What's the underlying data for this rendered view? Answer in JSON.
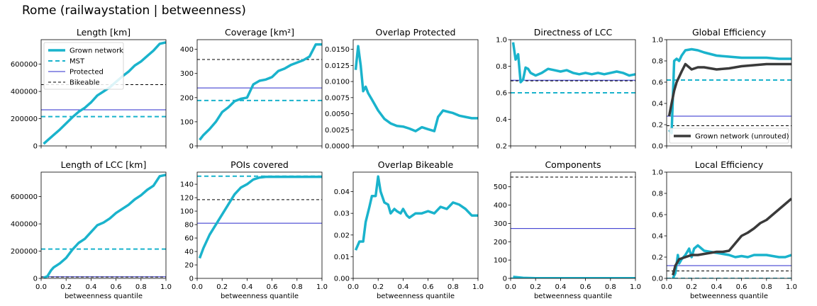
{
  "figure": {
    "title": "Rome (railwaystation | betweenness)"
  },
  "colors": {
    "grown": "#1ab3cc",
    "mst": "#1ab3cc",
    "protected": "#2b2bcc",
    "bikeable": "#000000",
    "unrouted": "#3a3a3a"
  },
  "chart_data": [
    {
      "id": "length",
      "type": "line",
      "title": "Length [km]",
      "xlabel": "",
      "ylim": [
        0,
        780000
      ],
      "xlim": [
        0,
        1
      ],
      "xticks": [
        0,
        0.2,
        0.4,
        0.6,
        0.8,
        1.0
      ],
      "xticklabels": [],
      "yticks": [
        0,
        200000,
        400000,
        600000
      ],
      "yticklabels": [
        "0",
        "200000",
        "400000",
        "600000"
      ],
      "legend": {
        "placement": "top-left",
        "entries": [
          {
            "label": "Grown network",
            "style": "grown"
          },
          {
            "label": "MST",
            "style": "mst"
          },
          {
            "label": "Protected",
            "style": "protected"
          },
          {
            "label": "Bikeable",
            "style": "bikeable"
          }
        ]
      },
      "hlines": [
        {
          "series": "MST",
          "y": 215000
        },
        {
          "series": "Protected",
          "y": 265000
        },
        {
          "series": "Bikeable",
          "y": 450000
        }
      ],
      "series": [
        {
          "name": "Grown network",
          "x": [
            0.02,
            0.05,
            0.1,
            0.15,
            0.2,
            0.25,
            0.3,
            0.35,
            0.4,
            0.45,
            0.5,
            0.55,
            0.6,
            0.65,
            0.7,
            0.75,
            0.8,
            0.85,
            0.9,
            0.95,
            1.0
          ],
          "y": [
            15000,
            40000,
            80000,
            120000,
            165000,
            210000,
            250000,
            280000,
            320000,
            370000,
            400000,
            430000,
            470000,
            510000,
            545000,
            590000,
            620000,
            660000,
            700000,
            750000,
            760000
          ]
        }
      ]
    },
    {
      "id": "coverage",
      "type": "line",
      "title": "Coverage [km²]",
      "xlabel": "",
      "ylim": [
        0,
        440
      ],
      "xlim": [
        0,
        1
      ],
      "xticks": [
        0,
        0.2,
        0.4,
        0.6,
        0.8,
        1.0
      ],
      "xticklabels": [],
      "yticks": [
        0,
        100,
        200,
        300,
        400
      ],
      "yticklabels": [
        "0",
        "100",
        "200",
        "300",
        "400"
      ],
      "hlines": [
        {
          "series": "MST",
          "y": 188
        },
        {
          "series": "Protected",
          "y": 240
        },
        {
          "series": "Bikeable",
          "y": 358
        }
      ],
      "series": [
        {
          "name": "Grown network",
          "x": [
            0.02,
            0.05,
            0.1,
            0.15,
            0.2,
            0.25,
            0.3,
            0.35,
            0.4,
            0.45,
            0.5,
            0.55,
            0.6,
            0.65,
            0.7,
            0.75,
            0.8,
            0.85,
            0.9,
            0.95,
            1.0
          ],
          "y": [
            25,
            45,
            70,
            100,
            140,
            160,
            185,
            195,
            200,
            255,
            270,
            275,
            285,
            310,
            320,
            335,
            345,
            355,
            370,
            420,
            420
          ]
        }
      ]
    },
    {
      "id": "overlap_protected",
      "type": "line",
      "title": "Overlap Protected",
      "xlabel": "",
      "ylim": [
        0,
        0.0165
      ],
      "xlim": [
        0,
        1
      ],
      "xticks": [
        0,
        0.2,
        0.4,
        0.6,
        0.8,
        1.0
      ],
      "xticklabels": [],
      "yticks": [
        0,
        0.0025,
        0.005,
        0.0075,
        0.01,
        0.0125,
        0.015
      ],
      "yticklabels": [
        "0.0000",
        "0.0025",
        "0.0050",
        "0.0075",
        "0.0100",
        "0.0125",
        "0.0150"
      ],
      "hlines": [],
      "series": [
        {
          "name": "Grown network",
          "x": [
            0.02,
            0.04,
            0.06,
            0.08,
            0.1,
            0.12,
            0.15,
            0.2,
            0.25,
            0.3,
            0.35,
            0.4,
            0.45,
            0.5,
            0.55,
            0.6,
            0.65,
            0.68,
            0.72,
            0.8,
            0.85,
            0.9,
            0.95,
            1.0
          ],
          "y": [
            0.0118,
            0.0155,
            0.0125,
            0.0085,
            0.0092,
            0.0082,
            0.0072,
            0.0055,
            0.0042,
            0.0035,
            0.0031,
            0.003,
            0.0027,
            0.0023,
            0.0029,
            0.0026,
            0.0023,
            0.0045,
            0.0055,
            0.0051,
            0.0047,
            0.0045,
            0.0043,
            0.0043
          ]
        }
      ]
    },
    {
      "id": "directness",
      "type": "line",
      "title": "Directness of LCC",
      "xlabel": "",
      "ylim": [
        0.2,
        1.0
      ],
      "xlim": [
        0,
        1
      ],
      "xticks": [
        0,
        0.2,
        0.4,
        0.6,
        0.8,
        1.0
      ],
      "xticklabels": [],
      "yticks": [
        0.2,
        0.4,
        0.6,
        0.8,
        1.0
      ],
      "yticklabels": [
        "0.2",
        "0.4",
        "0.6",
        "0.8",
        "1.0"
      ],
      "hlines": [
        {
          "series": "MST",
          "y": 0.6
        },
        {
          "series": "Protected",
          "y": 0.695
        },
        {
          "series": "Bikeable",
          "y": 0.69
        }
      ],
      "series": [
        {
          "name": "Grown network",
          "x": [
            0.02,
            0.04,
            0.06,
            0.08,
            0.1,
            0.12,
            0.14,
            0.16,
            0.2,
            0.25,
            0.3,
            0.35,
            0.4,
            0.45,
            0.5,
            0.55,
            0.6,
            0.65,
            0.7,
            0.75,
            0.8,
            0.85,
            0.9,
            0.95,
            1.0
          ],
          "y": [
            0.98,
            0.85,
            0.89,
            0.68,
            0.7,
            0.79,
            0.78,
            0.75,
            0.73,
            0.75,
            0.78,
            0.77,
            0.76,
            0.77,
            0.75,
            0.74,
            0.75,
            0.74,
            0.75,
            0.74,
            0.75,
            0.76,
            0.75,
            0.73,
            0.74
          ]
        }
      ]
    },
    {
      "id": "global_eff",
      "type": "line",
      "title": "Global Efficiency",
      "xlabel": "",
      "ylim": [
        0,
        1.0
      ],
      "xlim": [
        0,
        1
      ],
      "xticks": [
        0,
        0.2,
        0.4,
        0.6,
        0.8,
        1.0
      ],
      "xticklabels": [],
      "yticks": [
        0,
        0.2,
        0.4,
        0.6,
        0.8,
        1.0
      ],
      "yticklabels": [
        "0.0",
        "0.2",
        "0.4",
        "0.6",
        "0.8",
        "1.0"
      ],
      "legend": {
        "placement": "bottom-right",
        "entries": [
          {
            "label": "Grown network (unrouted)",
            "style": "unrouted"
          }
        ]
      },
      "hlines": [
        {
          "series": "MST",
          "y": 0.62
        },
        {
          "series": "Protected",
          "y": 0.28
        },
        {
          "series": "Bikeable",
          "y": 0.19
        }
      ],
      "series": [
        {
          "name": "Grown network",
          "x": [
            0.02,
            0.04,
            0.06,
            0.08,
            0.1,
            0.12,
            0.15,
            0.2,
            0.25,
            0.3,
            0.4,
            0.5,
            0.6,
            0.7,
            0.8,
            0.9,
            1.0
          ],
          "y": [
            0.15,
            0.12,
            0.8,
            0.82,
            0.8,
            0.85,
            0.9,
            0.91,
            0.9,
            0.88,
            0.85,
            0.84,
            0.83,
            0.83,
            0.83,
            0.82,
            0.82
          ]
        },
        {
          "name": "Grown network (unrouted)",
          "x": [
            0.02,
            0.04,
            0.06,
            0.08,
            0.1,
            0.12,
            0.15,
            0.2,
            0.25,
            0.3,
            0.4,
            0.5,
            0.6,
            0.7,
            0.8,
            0.9,
            1.0
          ],
          "y": [
            0.28,
            0.4,
            0.52,
            0.6,
            0.65,
            0.7,
            0.77,
            0.72,
            0.74,
            0.74,
            0.72,
            0.73,
            0.75,
            0.76,
            0.77,
            0.77,
            0.77
          ]
        }
      ]
    },
    {
      "id": "lcc",
      "type": "line",
      "title": "Length of LCC [km]",
      "xlabel": "betweenness quantile",
      "ylim": [
        0,
        780000
      ],
      "xlim": [
        0,
        1
      ],
      "xticks": [
        0,
        0.2,
        0.4,
        0.6,
        0.8,
        1.0
      ],
      "xticklabels": [
        "0.0",
        "0.2",
        "0.4",
        "0.6",
        "0.8",
        "1.0"
      ],
      "yticks": [
        0,
        200000,
        400000,
        600000
      ],
      "yticklabels": [
        "0",
        "200000",
        "400000",
        "600000"
      ],
      "hlines": [
        {
          "series": "MST",
          "y": 215000
        },
        {
          "series": "Protected",
          "y": 12000
        },
        {
          "series": "Bikeable",
          "y": 10000
        }
      ],
      "series": [
        {
          "name": "Grown network",
          "x": [
            0.02,
            0.05,
            0.08,
            0.1,
            0.15,
            0.2,
            0.25,
            0.3,
            0.35,
            0.4,
            0.45,
            0.5,
            0.55,
            0.6,
            0.65,
            0.7,
            0.75,
            0.8,
            0.85,
            0.9,
            0.95,
            1.0
          ],
          "y": [
            5000,
            15000,
            60000,
            80000,
            110000,
            150000,
            210000,
            260000,
            290000,
            340000,
            390000,
            410000,
            440000,
            480000,
            510000,
            540000,
            580000,
            610000,
            650000,
            680000,
            750000,
            760000
          ]
        }
      ]
    },
    {
      "id": "pois",
      "type": "line",
      "title": "POIs covered",
      "xlabel": "betweenness quantile",
      "ylim": [
        0,
        158
      ],
      "xlim": [
        0,
        1
      ],
      "xticks": [
        0,
        0.2,
        0.4,
        0.6,
        0.8,
        1.0
      ],
      "xticklabels": [
        "0.0",
        "0.2",
        "0.4",
        "0.6",
        "0.8",
        "1.0"
      ],
      "yticks": [
        0,
        20,
        40,
        60,
        80,
        100,
        120,
        140
      ],
      "yticklabels": [
        "0",
        "20",
        "40",
        "60",
        "80",
        "100",
        "120",
        "140"
      ],
      "hlines": [
        {
          "series": "MST",
          "y": 152
        },
        {
          "series": "Protected",
          "y": 82
        },
        {
          "series": "Bikeable",
          "y": 117
        }
      ],
      "series": [
        {
          "name": "Grown network",
          "x": [
            0.02,
            0.05,
            0.1,
            0.15,
            0.2,
            0.25,
            0.3,
            0.35,
            0.4,
            0.45,
            0.5,
            0.55,
            0.6,
            0.7,
            0.8,
            0.9,
            1.0
          ],
          "y": [
            30,
            45,
            65,
            80,
            95,
            110,
            125,
            135,
            140,
            147,
            150,
            151,
            151,
            151,
            151,
            151,
            151
          ]
        }
      ]
    },
    {
      "id": "overlap_bikeable",
      "type": "line",
      "title": "Overlap Bikeable",
      "xlabel": "betweenness quantile",
      "ylim": [
        0,
        0.049
      ],
      "xlim": [
        0,
        1
      ],
      "xticks": [
        0,
        0.2,
        0.4,
        0.6,
        0.8,
        1.0
      ],
      "xticklabels": [
        "0.0",
        "0.2",
        "0.4",
        "0.6",
        "0.8",
        "1.0"
      ],
      "yticks": [
        0,
        0.01,
        0.02,
        0.03,
        0.04
      ],
      "yticklabels": [
        "0.00",
        "0.01",
        "0.02",
        "0.03",
        "0.04"
      ],
      "hlines": [],
      "series": [
        {
          "name": "Grown network",
          "x": [
            0.02,
            0.05,
            0.08,
            0.1,
            0.13,
            0.15,
            0.18,
            0.2,
            0.22,
            0.25,
            0.28,
            0.3,
            0.33,
            0.35,
            0.38,
            0.4,
            0.43,
            0.45,
            0.5,
            0.55,
            0.6,
            0.65,
            0.7,
            0.75,
            0.8,
            0.85,
            0.9,
            0.95,
            1.0
          ],
          "y": [
            0.013,
            0.017,
            0.017,
            0.026,
            0.033,
            0.038,
            0.038,
            0.047,
            0.04,
            0.035,
            0.034,
            0.03,
            0.032,
            0.031,
            0.03,
            0.032,
            0.029,
            0.028,
            0.03,
            0.03,
            0.031,
            0.03,
            0.033,
            0.032,
            0.035,
            0.034,
            0.032,
            0.029,
            0.029
          ]
        }
      ]
    },
    {
      "id": "components",
      "type": "line",
      "title": "Components",
      "xlabel": "betweenness quantile",
      "ylim": [
        0,
        580
      ],
      "xlim": [
        0,
        1
      ],
      "xticks": [
        0,
        0.2,
        0.4,
        0.6,
        0.8,
        1.0
      ],
      "xticklabels": [
        "0.0",
        "0.2",
        "0.4",
        "0.6",
        "0.8",
        "1.0"
      ],
      "yticks": [
        0,
        100,
        200,
        300,
        400,
        500
      ],
      "yticklabels": [
        "0",
        "100",
        "200",
        "300",
        "400",
        "500"
      ],
      "hlines": [
        {
          "series": "MST",
          "y": 1
        },
        {
          "series": "Protected",
          "y": 272
        },
        {
          "series": "Bikeable",
          "y": 553
        }
      ],
      "series": [
        {
          "name": "Grown network",
          "x": [
            0.02,
            0.05,
            0.1,
            0.15,
            0.2,
            0.3,
            0.4,
            0.5,
            0.6,
            0.7,
            0.8,
            0.9,
            1.0
          ],
          "y": [
            8,
            6,
            3,
            2,
            1,
            1,
            1,
            1,
            1,
            1,
            1,
            1,
            1
          ]
        }
      ]
    },
    {
      "id": "local_eff",
      "type": "line",
      "title": "Local Efficiency",
      "xlabel": "betweenness quantile",
      "ylim": [
        0,
        1.0
      ],
      "xlim": [
        0,
        1
      ],
      "xticks": [
        0,
        0.2,
        0.4,
        0.6,
        0.8,
        1.0
      ],
      "xticklabels": [
        "0.0",
        "0.2",
        "0.4",
        "0.6",
        "0.8",
        "1.0"
      ],
      "yticks": [
        0,
        0.2,
        0.4,
        0.6,
        0.8,
        1.0
      ],
      "yticklabels": [
        "0.0",
        "0.2",
        "0.4",
        "0.6",
        "0.8",
        "1.0"
      ],
      "hlines": [
        {
          "series": "MST",
          "y": 0.0
        },
        {
          "series": "Protected",
          "y": 0.12
        },
        {
          "series": "Bikeable",
          "y": 0.07
        }
      ],
      "series": [
        {
          "name": "Grown network",
          "x": [
            0.05,
            0.07,
            0.09,
            0.1,
            0.12,
            0.15,
            0.18,
            0.2,
            0.22,
            0.25,
            0.3,
            0.4,
            0.5,
            0.55,
            0.6,
            0.65,
            0.7,
            0.8,
            0.9,
            0.95,
            1.0
          ],
          "y": [
            0.0,
            0.05,
            0.22,
            0.14,
            0.18,
            0.22,
            0.28,
            0.2,
            0.28,
            0.31,
            0.26,
            0.24,
            0.22,
            0.2,
            0.21,
            0.2,
            0.22,
            0.22,
            0.2,
            0.2,
            0.22
          ]
        },
        {
          "name": "Grown network (unrouted)",
          "x": [
            0.05,
            0.07,
            0.1,
            0.15,
            0.2,
            0.25,
            0.3,
            0.35,
            0.4,
            0.45,
            0.5,
            0.55,
            0.6,
            0.65,
            0.7,
            0.75,
            0.8,
            0.85,
            0.9,
            0.95,
            1.0
          ],
          "y": [
            0.03,
            0.12,
            0.18,
            0.2,
            0.22,
            0.22,
            0.23,
            0.24,
            0.25,
            0.25,
            0.26,
            0.33,
            0.4,
            0.43,
            0.47,
            0.52,
            0.55,
            0.6,
            0.65,
            0.7,
            0.75
          ]
        }
      ]
    }
  ]
}
